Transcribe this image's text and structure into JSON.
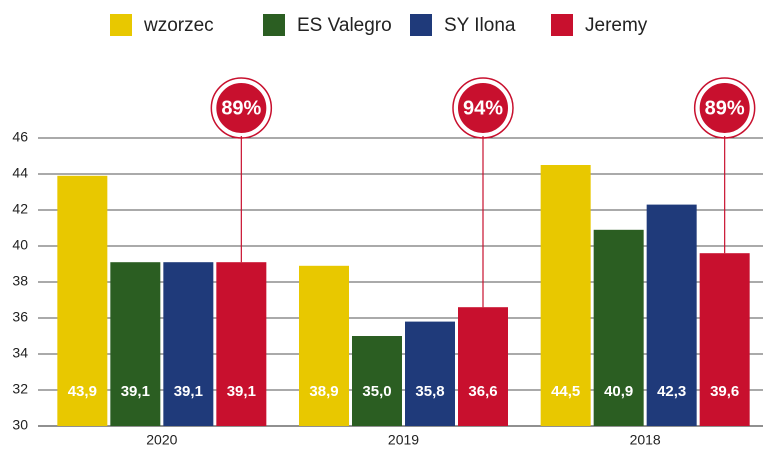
{
  "chart_data": {
    "type": "bar",
    "categories": [
      "2020",
      "2019",
      "2018"
    ],
    "series": [
      {
        "name": "wzorzec",
        "color": "#e8c800",
        "values": [
          43.9,
          38.9,
          44.5
        ],
        "value_labels": [
          "43,9",
          "38,9",
          "44,5"
        ]
      },
      {
        "name": "ES Valegro",
        "color": "#2b5e22",
        "values": [
          39.1,
          35.0,
          40.9
        ],
        "value_labels": [
          "39,1",
          "35,0",
          "40,9"
        ]
      },
      {
        "name": "SY Ilona",
        "color": "#1f3a7a",
        "values": [
          39.1,
          35.8,
          42.3
        ],
        "value_labels": [
          "39,1",
          "35,8",
          "42,3"
        ]
      },
      {
        "name": "Jeremy",
        "color": "#c8102e",
        "values": [
          39.1,
          36.6,
          39.6
        ],
        "value_labels": [
          "39,1",
          "36,6",
          "39,6"
        ]
      }
    ],
    "annotations": {
      "values": [
        89,
        94,
        89
      ],
      "labels": [
        "89%",
        "94%",
        "89%"
      ]
    },
    "ylim": [
      30,
      46
    ],
    "yticks": [
      30,
      32,
      34,
      36,
      38,
      40,
      42,
      44,
      46
    ],
    "grid": true,
    "legend": "top"
  }
}
